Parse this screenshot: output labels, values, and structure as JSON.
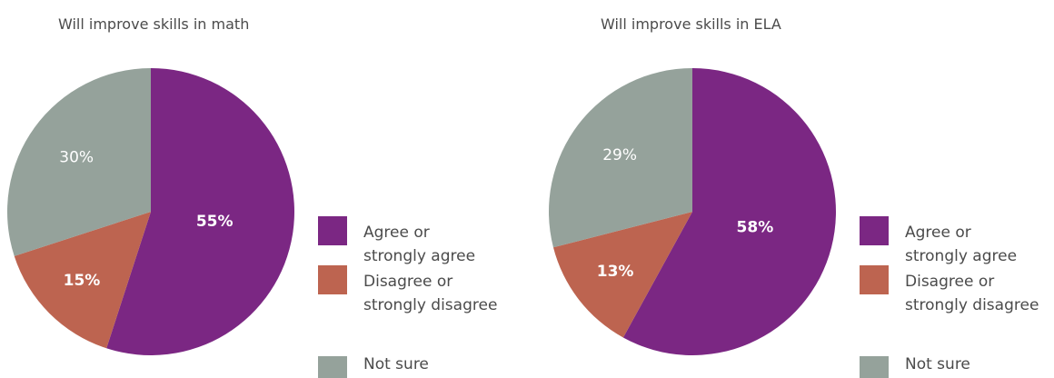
{
  "legend": [
    {
      "label": "Agree or\nstrongly agree",
      "color": "#7b2783"
    },
    {
      "label": "Disagree or\nstrongly disagree",
      "color": "#bd6450"
    },
    {
      "label": "Not sure",
      "color": "#95a29b"
    }
  ],
  "label_colors": {
    "bold": "#ffffff",
    "light": "#ffffff"
  },
  "chart_data": [
    {
      "type": "pie",
      "title": "Will improve skills in math",
      "categories": [
        "Agree or strongly agree",
        "Disagree or strongly disagree",
        "Not sure"
      ],
      "values": [
        55,
        15,
        30
      ],
      "labels": [
        "55%",
        "15%",
        "30%"
      ],
      "colors": [
        "#7b2783",
        "#bd6450",
        "#95a29b"
      ],
      "legend_position": "right"
    },
    {
      "type": "pie",
      "title": "Will improve skills in ELA",
      "categories": [
        "Agree or strongly agree",
        "Disagree or strongly disagree",
        "Not sure"
      ],
      "values": [
        58,
        13,
        29
      ],
      "labels": [
        "58%",
        "13%",
        "29%"
      ],
      "colors": [
        "#7b2783",
        "#bd6450",
        "#95a29b"
      ],
      "legend_position": "right"
    }
  ]
}
